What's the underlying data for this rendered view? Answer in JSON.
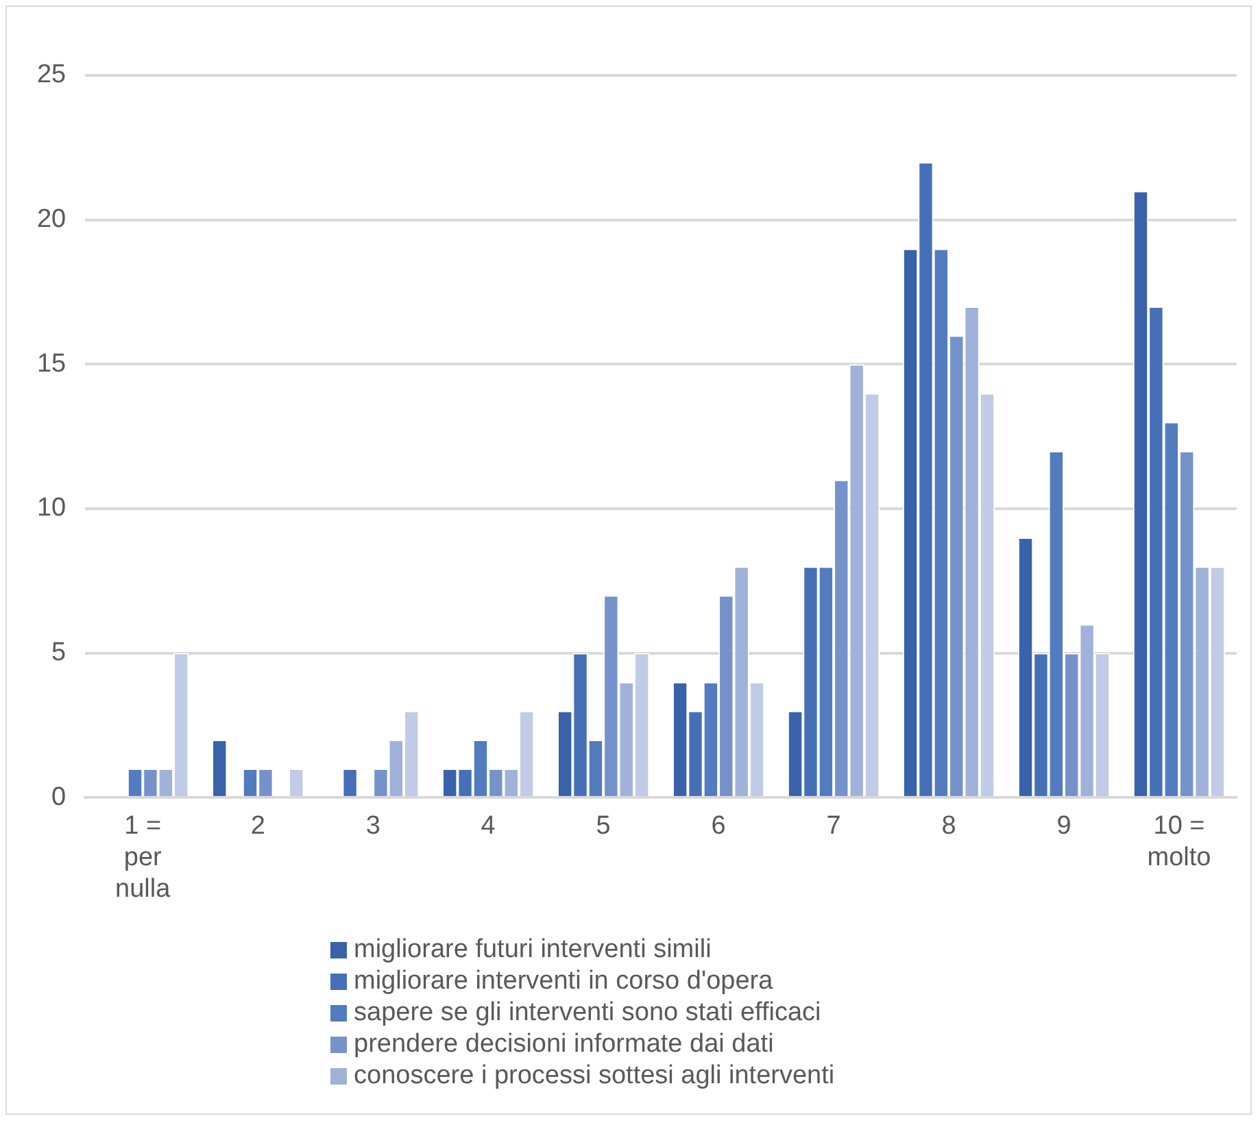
{
  "chart_data": {
    "type": "bar",
    "categories": [
      "1 = per nulla",
      "2",
      "3",
      "4",
      "5",
      "6",
      "7",
      "8",
      "9",
      "10 = molto"
    ],
    "series": [
      {
        "name": "migliorare futuri interventi simili",
        "color": "#3a62ab",
        "values": [
          0,
          2,
          0,
          1,
          3,
          4,
          3,
          19,
          9,
          21
        ]
      },
      {
        "name": "migliorare interventi in corso d'opera",
        "color": "#4570b8",
        "values": [
          0,
          0,
          1,
          1,
          5,
          3,
          8,
          22,
          5,
          17
        ]
      },
      {
        "name": "sapere se gli interventi sono stati efficaci",
        "color": "#527bc0",
        "values": [
          1,
          1,
          0,
          2,
          2,
          4,
          8,
          19,
          12,
          13
        ]
      },
      {
        "name": "prendere decisioni informate dai dati",
        "color": "#7593ca",
        "values": [
          1,
          1,
          1,
          1,
          7,
          7,
          11,
          16,
          5,
          12
        ]
      },
      {
        "name": "conoscere i processi sottesi agli interventi",
        "color": "#a0b1da",
        "values": [
          1,
          0,
          2,
          1,
          4,
          8,
          15,
          17,
          6,
          8
        ]
      },
      {
        "color": "#c1cbe7",
        "values": [
          5,
          1,
          3,
          3,
          5,
          4,
          14,
          14,
          5,
          8
        ]
      }
    ],
    "ylim": [
      0,
      25
    ],
    "yticks": [
      0,
      5,
      10,
      15,
      20,
      25
    ],
    "grid": "y",
    "legend": "bottom"
  }
}
